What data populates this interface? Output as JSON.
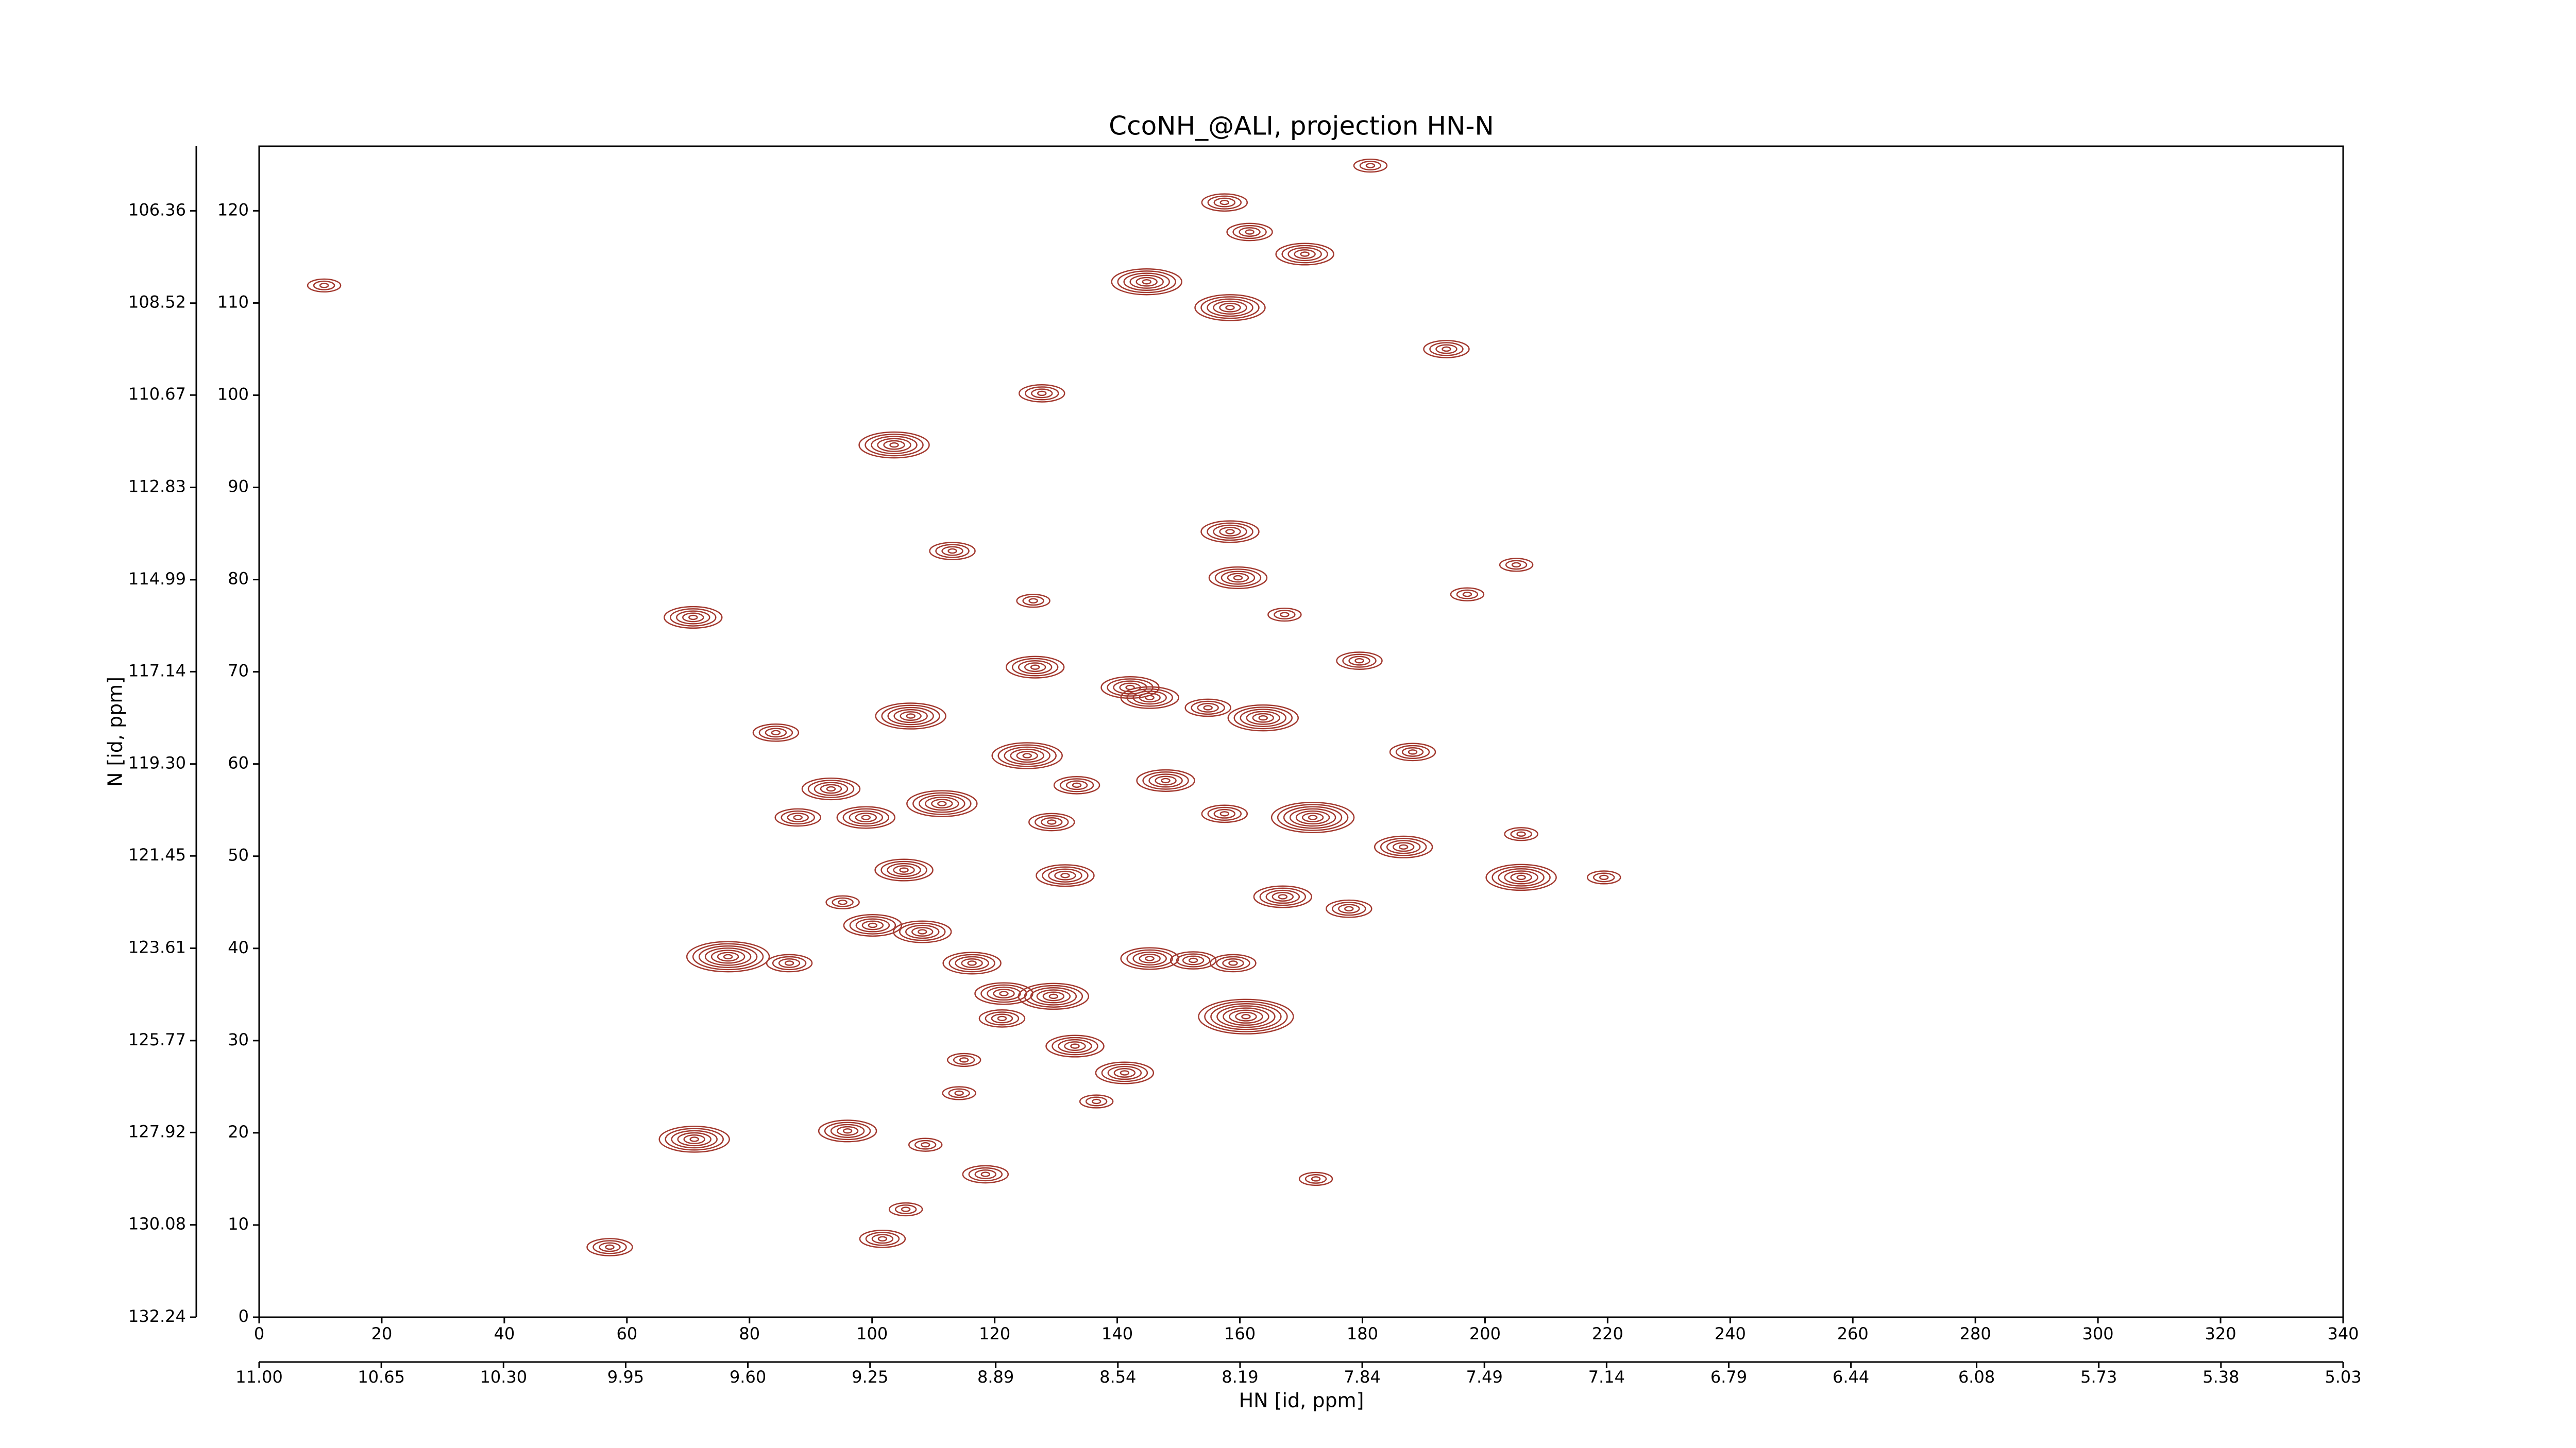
{
  "chart_data": {
    "type": "contour",
    "title": "CcoNH_@ALI, projection HN-N",
    "xlabel": "HN [id, ppm]",
    "ylabel": "N [id, ppm]",
    "color": "#a33a30",
    "xlim": [
      0,
      340
    ],
    "xticks": [
      0,
      20,
      40,
      60,
      80,
      100,
      120,
      140,
      160,
      180,
      200,
      220,
      240,
      260,
      280,
      300,
      320,
      340
    ],
    "ylim": [
      0,
      127
    ],
    "yticks": [
      0,
      10,
      20,
      30,
      40,
      50,
      60,
      70,
      80,
      90,
      100,
      110,
      120
    ],
    "x2lim": [
      11,
      5.03
    ],
    "x2ticks": [
      {
        "value": 11.0,
        "label": "11.00"
      },
      {
        "value": 10.65,
        "label": "10.65"
      },
      {
        "value": 10.3,
        "label": "10.30"
      },
      {
        "value": 9.95,
        "label": "9.95"
      },
      {
        "value": 9.6,
        "label": "9.60"
      },
      {
        "value": 9.25,
        "label": "9.25"
      },
      {
        "value": 8.89,
        "label": "8.89"
      },
      {
        "value": 8.54,
        "label": "8.54"
      },
      {
        "value": 8.19,
        "label": "8.19"
      },
      {
        "value": 7.84,
        "label": "7.84"
      },
      {
        "value": 7.49,
        "label": "7.49"
      },
      {
        "value": 7.14,
        "label": "7.14"
      },
      {
        "value": 6.79,
        "label": "6.79"
      },
      {
        "value": 6.44,
        "label": "6.44"
      },
      {
        "value": 6.08,
        "label": "6.08"
      },
      {
        "value": 5.73,
        "label": "5.73"
      },
      {
        "value": 5.38,
        "label": "5.38"
      },
      {
        "value": 5.03,
        "label": "5.03"
      }
    ],
    "y2lim": [
      132.24,
      104.85
    ],
    "y2ticks": [
      {
        "value": 106.36,
        "label": "106.36"
      },
      {
        "value": 108.52,
        "label": "108.52"
      },
      {
        "value": 110.67,
        "label": "110.67"
      },
      {
        "value": 112.83,
        "label": "112.83"
      },
      {
        "value": 114.99,
        "label": "114.99"
      },
      {
        "value": 117.14,
        "label": "117.14"
      },
      {
        "value": 119.3,
        "label": "119.30"
      },
      {
        "value": 121.45,
        "label": "121.45"
      },
      {
        "value": 123.61,
        "label": "123.61"
      },
      {
        "value": 125.77,
        "label": "125.77"
      },
      {
        "value": 127.92,
        "label": "127.92"
      },
      {
        "value": 130.08,
        "label": "130.08"
      },
      {
        "value": 132.24,
        "label": "132.24"
      }
    ],
    "x": [
      10.6,
      103.6,
      127.7,
      113.1,
      70.8,
      84.3,
      106.3,
      93.3,
      87.9,
      99,
      111.4,
      105.2,
      100.1,
      108.2,
      76.5,
      86.5,
      116.3,
      71,
      96,
      108.7,
      118.5,
      57.2,
      101.7,
      105.5,
      121.5,
      129.6,
      121.2,
      133.1,
      141.2,
      136.6,
      115,
      125.3,
      129.3,
      133.4,
      131.5,
      126.6,
      126.3,
      142.1,
      152.4,
      145.3,
      161,
      158.9,
      163.8,
      154.8,
      145.3,
      158.4,
      159.7,
      167.3,
      179.5,
      188.2,
      171.9,
      186.7,
      177.8,
      167,
      157.5,
      147.9,
      205.9,
      219.4,
      205.9,
      205.1,
      193.7,
      158.4,
      144.8,
      170.6,
      161.6,
      157.5,
      181.3,
      172.4,
      197.1,
      114.2,
      95.2
    ],
    "y": [
      111.9,
      94.6,
      100.2,
      83.1,
      75.9,
      63.4,
      65.2,
      57.3,
      54.2,
      54.2,
      55.7,
      48.5,
      42.5,
      41.8,
      39.1,
      38.4,
      38.4,
      19.3,
      20.2,
      18.7,
      15.5,
      7.6,
      8.5,
      11.7,
      35.1,
      34.8,
      32.4,
      29.4,
      26.5,
      23.4,
      27.9,
      60.9,
      53.7,
      57.7,
      47.9,
      70.5,
      77.7,
      68.3,
      38.7,
      38.9,
      32.6,
      38.4,
      65,
      66.1,
      67.2,
      85.2,
      80.2,
      76.2,
      71.2,
      61.3,
      54.2,
      51,
      44.3,
      45.6,
      54.6,
      58.2,
      47.7,
      47.7,
      52.4,
      81.6,
      105,
      109.5,
      112.3,
      115.3,
      117.7,
      120.9,
      124.9,
      15,
      78.4,
      24.3,
      45
    ],
    "levels": [
      3,
      6,
      4,
      4,
      5,
      4,
      6,
      5,
      4,
      5,
      6,
      5,
      5,
      5,
      7,
      4,
      5,
      6,
      5,
      3,
      4,
      4,
      4,
      3,
      5,
      6,
      4,
      5,
      5,
      3,
      3,
      6,
      4,
      4,
      5,
      5,
      3,
      5,
      4,
      5,
      8,
      4,
      6,
      4,
      5,
      5,
      5,
      3,
      4,
      4,
      7,
      5,
      4,
      5,
      4,
      5,
      6,
      3,
      3,
      3,
      4,
      6,
      6,
      5,
      4,
      4,
      3,
      3,
      3,
      3,
      3
    ]
  }
}
